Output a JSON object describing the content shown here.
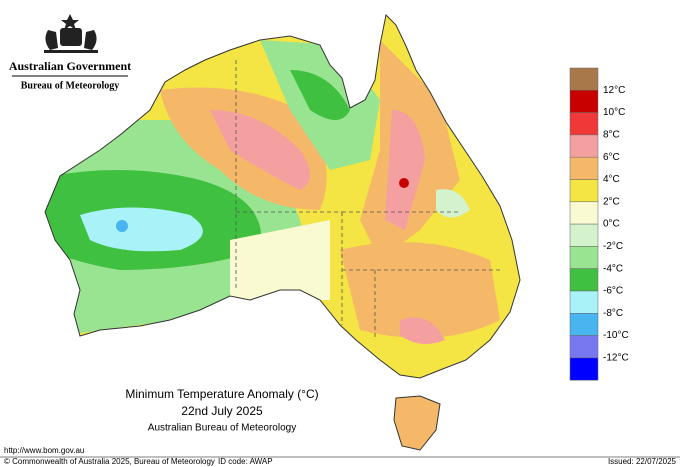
{
  "header": {
    "government": "Australian Government",
    "agency": "Bureau of Meteorology"
  },
  "map": {
    "title": "Minimum Temperature Anomaly (°C)",
    "date": "22nd July 2025",
    "source": "Australian Bureau of Meteorology"
  },
  "legend": {
    "colors": [
      "#a8784a",
      "#c80000",
      "#f03838",
      "#f4a0a0",
      "#f4b868",
      "#f4e444",
      "#fafad2",
      "#d4f2cc",
      "#98e490",
      "#40c040",
      "#a8f2f8",
      "#48b4f0",
      "#7878f0",
      "#0000ff"
    ],
    "labels": [
      "12°C",
      "10°C",
      "8°C",
      "6°C",
      "4°C",
      "2°C",
      "0°C",
      "-2°C",
      "-4°C",
      "-6°C",
      "-8°C",
      "-10°C",
      "-12°C"
    ]
  },
  "footer": {
    "url": "http://www.bom.gov.au",
    "copyright": "© Commonwealth of Australia 2025, Bureau of Meteorology",
    "id_code": "ID code: AWAP",
    "issued": "Issued: 22/07/2025"
  }
}
